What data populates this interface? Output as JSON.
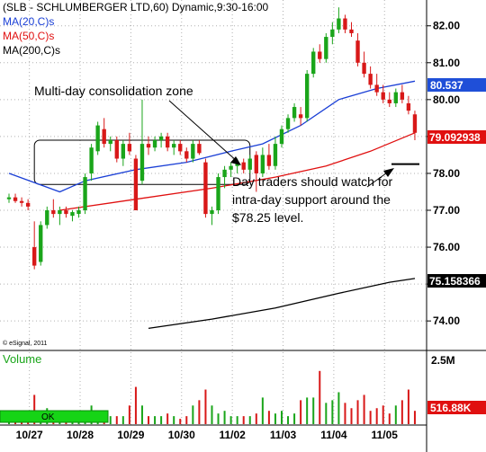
{
  "header": {
    "title": "(SLB - SCHLUMBERGER LTD,60) Dynamic,9:30-16:00",
    "ma_labels": [
      {
        "text": "MA(20,C)s",
        "color": "#1a3fd6"
      },
      {
        "text": "MA(50,C)s",
        "color": "#e01010"
      },
      {
        "text": "MA(200,C)s",
        "color": "#000000"
      }
    ]
  },
  "copyright": "© eSignal, 2011",
  "annotations": {
    "consolidation": "Multi-day consolidation zone",
    "support": [
      "Day traders should watch for",
      "intra-day support around the",
      "$78.25 level."
    ]
  },
  "volume_panel": {
    "title": "Volume",
    "ok_label": "OK",
    "axis_label": "2.5M",
    "last_badge": "516.88K"
  },
  "price_badges": {
    "ma20": "80.537",
    "last": "79.092938",
    "ma200": "75.158366"
  },
  "colors": {
    "up": "#1aa51a",
    "down": "#d81818",
    "ma20": "#1a3fd6",
    "ma50": "#e01010",
    "ma200": "#000000",
    "badge_blue": "#1f4fd8",
    "badge_red": "#e01010"
  },
  "chart_data": {
    "type": "candlestick",
    "ylim": [
      73.2,
      82.7
    ],
    "yticks": [
      "74.00",
      "75.00",
      "76.00",
      "77.00",
      "78.00",
      "79.00",
      "80.00",
      "81.00",
      "82.00"
    ],
    "xticks": [
      "10/27",
      "10/28",
      "10/29",
      "10/30",
      "11/02",
      "11/03",
      "11/04",
      "11/05"
    ],
    "support_level": 78.25,
    "consolidation_zone": {
      "low": 77.7,
      "high": 78.9
    },
    "candles": [
      {
        "o": 77.3,
        "h": 77.45,
        "l": 77.2,
        "c": 77.35
      },
      {
        "o": 77.35,
        "h": 77.45,
        "l": 77.2,
        "c": 77.25
      },
      {
        "o": 77.25,
        "h": 77.35,
        "l": 77.1,
        "c": 77.2
      },
      {
        "o": 77.2,
        "h": 77.3,
        "l": 77.0,
        "c": 77.1
      },
      {
        "o": 76.0,
        "h": 76.7,
        "l": 75.4,
        "c": 75.5
      },
      {
        "o": 75.6,
        "h": 76.7,
        "l": 75.5,
        "c": 76.6
      },
      {
        "o": 76.6,
        "h": 77.1,
        "l": 76.5,
        "c": 77.0
      },
      {
        "o": 77.0,
        "h": 77.3,
        "l": 76.8,
        "c": 76.9
      },
      {
        "o": 76.9,
        "h": 77.1,
        "l": 76.6,
        "c": 77.0
      },
      {
        "o": 77.0,
        "h": 77.1,
        "l": 76.8,
        "c": 76.9
      },
      {
        "o": 76.85,
        "h": 77.0,
        "l": 76.7,
        "c": 76.95
      },
      {
        "o": 76.9,
        "h": 77.1,
        "l": 76.8,
        "c": 77.0
      },
      {
        "o": 77.0,
        "h": 78.0,
        "l": 76.9,
        "c": 77.9
      },
      {
        "o": 78.0,
        "h": 78.8,
        "l": 77.8,
        "c": 78.7
      },
      {
        "o": 78.6,
        "h": 79.4,
        "l": 78.5,
        "c": 79.3
      },
      {
        "o": 79.2,
        "h": 79.5,
        "l": 78.7,
        "c": 78.8
      },
      {
        "o": 78.8,
        "h": 79.0,
        "l": 78.6,
        "c": 78.9
      },
      {
        "o": 78.9,
        "h": 79.0,
        "l": 78.3,
        "c": 78.4
      },
      {
        "o": 78.4,
        "h": 78.9,
        "l": 78.2,
        "c": 78.8
      },
      {
        "o": 78.8,
        "h": 79.1,
        "l": 78.5,
        "c": 78.6
      },
      {
        "o": 78.4,
        "h": 78.5,
        "l": 77.0,
        "c": 77.0
      },
      {
        "o": 77.8,
        "h": 80.0,
        "l": 77.7,
        "c": 78.8
      },
      {
        "o": 78.8,
        "h": 79.0,
        "l": 78.5,
        "c": 78.7
      },
      {
        "o": 78.7,
        "h": 79.0,
        "l": 78.6,
        "c": 78.9
      },
      {
        "o": 78.9,
        "h": 79.1,
        "l": 78.7,
        "c": 79.0
      },
      {
        "o": 79.0,
        "h": 79.1,
        "l": 78.6,
        "c": 78.7
      },
      {
        "o": 78.7,
        "h": 78.9,
        "l": 78.5,
        "c": 78.8
      },
      {
        "o": 78.8,
        "h": 78.9,
        "l": 78.5,
        "c": 78.6
      },
      {
        "o": 78.6,
        "h": 78.7,
        "l": 78.3,
        "c": 78.4
      },
      {
        "o": 78.4,
        "h": 78.9,
        "l": 78.3,
        "c": 78.8
      },
      {
        "o": 78.8,
        "h": 78.9,
        "l": 78.5,
        "c": 78.55
      },
      {
        "o": 78.3,
        "h": 78.4,
        "l": 76.8,
        "c": 76.9
      },
      {
        "o": 76.9,
        "h": 77.1,
        "l": 76.6,
        "c": 77.0
      },
      {
        "o": 77.0,
        "h": 78.0,
        "l": 76.9,
        "c": 77.9
      },
      {
        "o": 77.9,
        "h": 78.2,
        "l": 77.6,
        "c": 78.1
      },
      {
        "o": 78.1,
        "h": 78.3,
        "l": 77.9,
        "c": 78.2
      },
      {
        "o": 78.2,
        "h": 78.4,
        "l": 78.0,
        "c": 78.3
      },
      {
        "o": 78.3,
        "h": 78.4,
        "l": 78.0,
        "c": 78.1
      },
      {
        "o": 78.1,
        "h": 78.5,
        "l": 78.0,
        "c": 78.4
      },
      {
        "o": 78.5,
        "h": 78.6,
        "l": 77.5,
        "c": 78.0
      },
      {
        "o": 78.0,
        "h": 78.7,
        "l": 77.9,
        "c": 78.5
      },
      {
        "o": 78.5,
        "h": 78.8,
        "l": 78.1,
        "c": 78.2
      },
      {
        "o": 78.2,
        "h": 79.0,
        "l": 78.1,
        "c": 78.8
      },
      {
        "o": 78.8,
        "h": 79.3,
        "l": 78.7,
        "c": 79.2
      },
      {
        "o": 79.2,
        "h": 79.6,
        "l": 79.1,
        "c": 79.5
      },
      {
        "o": 79.5,
        "h": 79.9,
        "l": 79.4,
        "c": 79.8
      },
      {
        "o": 79.6,
        "h": 79.8,
        "l": 79.3,
        "c": 79.5
      },
      {
        "o": 79.5,
        "h": 80.8,
        "l": 79.4,
        "c": 80.7
      },
      {
        "o": 80.7,
        "h": 81.4,
        "l": 80.6,
        "c": 81.3
      },
      {
        "o": 81.3,
        "h": 81.5,
        "l": 81.0,
        "c": 81.1
      },
      {
        "o": 81.1,
        "h": 81.8,
        "l": 81.0,
        "c": 81.7
      },
      {
        "o": 81.7,
        "h": 82.1,
        "l": 81.5,
        "c": 81.9
      },
      {
        "o": 81.9,
        "h": 82.5,
        "l": 81.8,
        "c": 82.2
      },
      {
        "o": 82.2,
        "h": 82.3,
        "l": 81.8,
        "c": 81.9
      },
      {
        "o": 81.9,
        "h": 82.1,
        "l": 81.7,
        "c": 81.8
      },
      {
        "o": 81.6,
        "h": 81.8,
        "l": 80.9,
        "c": 81.0
      },
      {
        "o": 81.0,
        "h": 81.3,
        "l": 80.6,
        "c": 80.7
      },
      {
        "o": 80.7,
        "h": 80.9,
        "l": 80.3,
        "c": 80.4
      },
      {
        "o": 80.4,
        "h": 80.7,
        "l": 80.1,
        "c": 80.2
      },
      {
        "o": 80.2,
        "h": 80.4,
        "l": 79.9,
        "c": 80.0
      },
      {
        "o": 80.0,
        "h": 80.2,
        "l": 79.8,
        "c": 79.9
      },
      {
        "o": 79.9,
        "h": 80.3,
        "l": 79.8,
        "c": 80.2
      },
      {
        "o": 80.2,
        "h": 80.4,
        "l": 79.9,
        "c": 80.0
      },
      {
        "o": 79.9,
        "h": 80.1,
        "l": 79.6,
        "c": 79.7
      },
      {
        "o": 79.6,
        "h": 79.7,
        "l": 78.9,
        "c": 79.1
      }
    ],
    "volume_max": 2.5,
    "volume": [
      0.3,
      0.25,
      0.3,
      0.25,
      1.1,
      0.4,
      0.6,
      0.25,
      0.2,
      0.2,
      0.2,
      0.4,
      0.5,
      0.7,
      0.5,
      0.4,
      0.3,
      0.3,
      0.3,
      0.7,
      1.4,
      0.7,
      0.3,
      0.3,
      0.3,
      0.4,
      0.3,
      0.2,
      0.3,
      0.7,
      0.9,
      1.3,
      0.7,
      0.4,
      0.5,
      0.3,
      0.3,
      0.3,
      0.3,
      0.4,
      1.0,
      0.5,
      0.4,
      0.5,
      0.3,
      0.4,
      0.9,
      1.0,
      1.0,
      2.0,
      0.8,
      0.9,
      1.2,
      0.8,
      0.6,
      0.9,
      1.1,
      0.5,
      0.6,
      0.7,
      0.4,
      0.7,
      0.9,
      1.3,
      0.5
    ],
    "ma20": [
      [
        0,
        78.0
      ],
      [
        8,
        77.5
      ],
      [
        12,
        77.8
      ],
      [
        20,
        78.1
      ],
      [
        28,
        78.3
      ],
      [
        35,
        78.6
      ],
      [
        40,
        78.8
      ],
      [
        46,
        79.3
      ],
      [
        52,
        80.0
      ],
      [
        58,
        80.3
      ],
      [
        64,
        80.5
      ]
    ],
    "ma50": [
      [
        8,
        77.0
      ],
      [
        20,
        77.3
      ],
      [
        32,
        77.6
      ],
      [
        42,
        77.9
      ],
      [
        50,
        78.2
      ],
      [
        57,
        78.6
      ],
      [
        64,
        79.1
      ]
    ],
    "ma200": [
      [
        22,
        73.8
      ],
      [
        32,
        74.05
      ],
      [
        42,
        74.35
      ],
      [
        52,
        74.75
      ],
      [
        60,
        75.05
      ],
      [
        64,
        75.15
      ]
    ]
  }
}
